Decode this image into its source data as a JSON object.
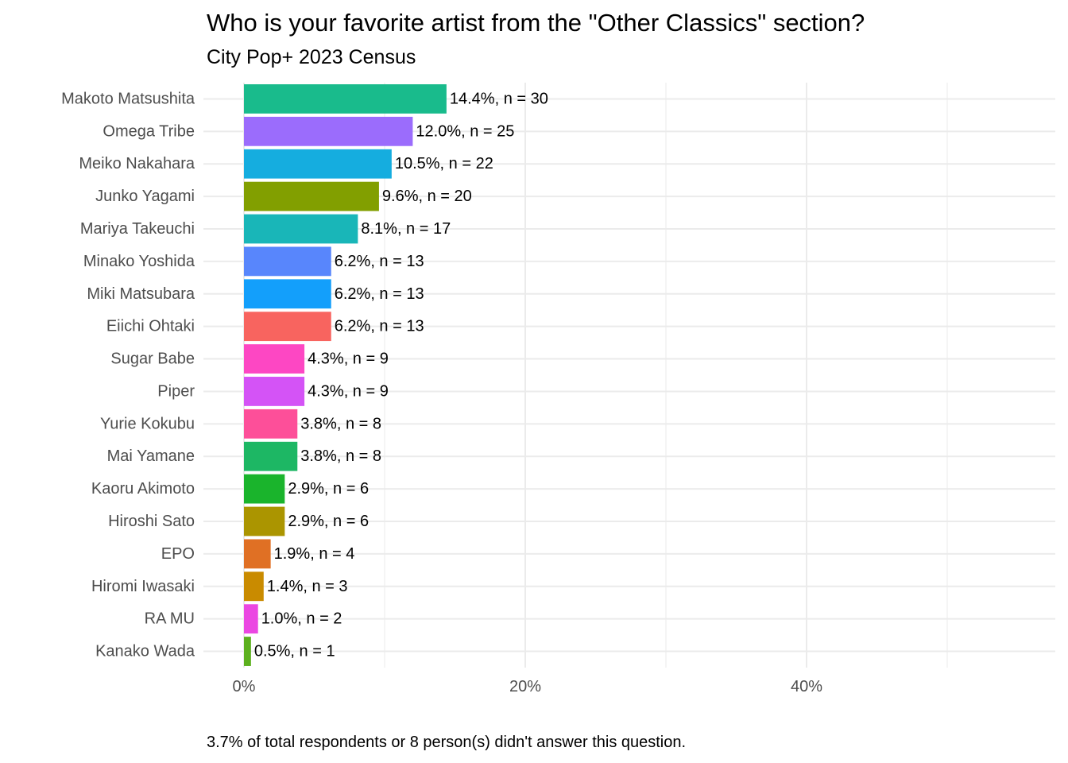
{
  "chart_data": {
    "type": "bar",
    "orientation": "horizontal",
    "title": "Who is your favorite artist from the \"Other Classics\" section?",
    "subtitle": "City Pop+ 2023 Census",
    "caption": "3.7% of total respondents or 8 person(s) didn't answer this question.",
    "xlabel": "",
    "ylabel": "",
    "xlim": [
      0,
      57
    ],
    "x_ticks": [
      "0%",
      "20%",
      "40%"
    ],
    "x_tick_values": [
      0,
      20,
      40
    ],
    "grid": true,
    "legend": "none",
    "categories": [
      "Makoto Matsushita",
      "Omega Tribe",
      "Meiko Nakahara",
      "Junko Yagami",
      "Mariya Takeuchi",
      "Minako Yoshida",
      "Miki Matsubara",
      "Eiichi Ohtaki",
      "Sugar Babe",
      "Piper",
      "Yurie Kokubu",
      "Mai Yamane",
      "Kaoru Akimoto",
      "Hiroshi Sato",
      "EPO",
      "Hiromi Iwasaki",
      "RA MU",
      "Kanako Wada"
    ],
    "values": [
      14.4,
      12.0,
      10.5,
      9.6,
      8.1,
      6.2,
      6.2,
      6.2,
      4.3,
      4.3,
      3.8,
      3.8,
      2.9,
      2.9,
      1.9,
      1.4,
      1.0,
      0.5
    ],
    "counts": [
      30,
      25,
      22,
      20,
      17,
      13,
      13,
      13,
      9,
      9,
      8,
      8,
      6,
      6,
      4,
      3,
      2,
      1
    ],
    "data_labels": [
      "14.4%, n = 30",
      "12.0%, n = 25",
      "10.5%, n = 22",
      "9.6%, n = 20",
      "8.1%, n = 17",
      "6.2%, n = 13",
      "6.2%, n = 13",
      "6.2%, n = 13",
      "4.3%, n = 9",
      "4.3%, n = 9",
      "3.8%, n = 8",
      "3.8%, n = 8",
      "2.9%, n = 6",
      "2.9%, n = 6",
      "1.9%, n = 4",
      "1.4%, n = 3",
      "1.0%, n = 2",
      "0.5%, n = 1"
    ],
    "colors": [
      "#19bb8c",
      "#9b6cfc",
      "#15addf",
      "#829f00",
      "#19b6b8",
      "#5886fc",
      "#139ffb",
      "#f8645f",
      "#fd47c3",
      "#d453f6",
      "#fd4f99",
      "#1db764",
      "#1ab42c",
      "#ab9500",
      "#e07024",
      "#c98b00",
      "#eb47e2",
      "#5cb01e"
    ],
    "grid_color": "#ebebeb"
  }
}
